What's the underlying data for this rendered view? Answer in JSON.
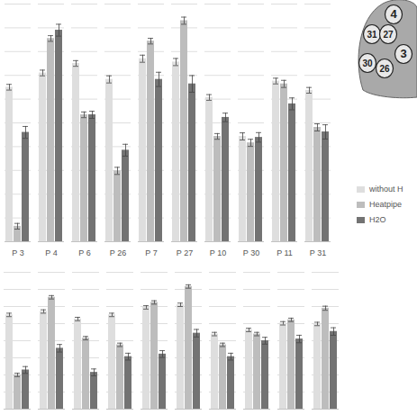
{
  "chart_data": [
    {
      "type": "bar",
      "categories": [
        "P 3",
        "P 4",
        "P 6",
        "P 26",
        "P 7",
        "P 27",
        "P 10",
        "P 30",
        "P 11",
        "P 31"
      ],
      "series": [
        {
          "name": "without H",
          "color": "#dedede",
          "values": [
            65,
            71,
            75,
            68.3,
            77,
            75.6,
            60.7,
            44.3,
            67.6,
            63.7
          ],
          "errors": [
            1.2,
            1.2,
            1.2,
            1.5,
            1.5,
            1.5,
            1.2,
            1.5,
            1.2,
            1.2
          ]
        },
        {
          "name": "Heatpipe",
          "color": "#bdbdbd",
          "values": [
            6.5,
            85.5,
            53.4,
            29.8,
            84.4,
            93,
            44.3,
            41.6,
            66.4,
            48.1
          ],
          "errors": [
            1.2,
            1.2,
            1.2,
            1.5,
            1.2,
            1.5,
            1.2,
            1.5,
            1.5,
            1.5
          ]
        },
        {
          "name": "H2O",
          "color": "#737373",
          "values": [
            46,
            89,
            53.4,
            38.5,
            68.3,
            66.4,
            52.3,
            43.9,
            58,
            46.2
          ],
          "errors": [
            2.5,
            2.5,
            1.5,
            2.5,
            3,
            3.5,
            1.8,
            2,
            2.5,
            3
          ]
        }
      ],
      "ylim": [
        0,
        100
      ],
      "yticks": [
        0,
        10,
        20,
        30,
        40,
        50,
        60,
        70,
        80,
        90,
        100
      ],
      "grid": true,
      "legend": "right",
      "tick_labels": "x"
    },
    {
      "type": "bar",
      "categories": [
        null,
        null,
        null,
        null,
        null,
        null,
        null,
        null,
        null,
        null
      ],
      "series": [
        {
          "name": "without H",
          "color": "#dedede",
          "values": [
            55.1,
            57.1,
            52.7,
            55.1,
            59.5,
            61,
            43.9,
            46.3,
            50.2,
            49.8
          ],
          "errors": [
            1,
            1,
            1,
            1,
            1,
            1,
            1,
            1,
            1,
            1
          ]
        },
        {
          "name": "Heatpipe",
          "color": "#bdbdbd",
          "values": [
            20,
            65.4,
            41.5,
            37.6,
            62.4,
            71.7,
            37.6,
            43.9,
            52.2,
            59
          ],
          "errors": [
            1,
            1,
            1,
            1,
            1,
            1,
            1,
            1,
            1,
            1.2
          ]
        },
        {
          "name": "H2O",
          "color": "#737373",
          "values": [
            22.9,
            35.6,
            21.5,
            30.7,
            32.2,
            44.4,
            30.7,
            40,
            41,
            45.4
          ],
          "errors": [
            2,
            2.2,
            2,
            2,
            2,
            2.2,
            2,
            2,
            2.2,
            2.2
          ]
        }
      ],
      "ylim": [
        0,
        80
      ],
      "yticks": [
        0,
        10,
        20,
        30,
        40,
        50,
        60,
        70,
        80
      ],
      "grid": true,
      "tick_labels": false
    }
  ],
  "diagram": {
    "labels": [
      "4",
      "31",
      "27",
      "30",
      "26",
      "3"
    ]
  }
}
